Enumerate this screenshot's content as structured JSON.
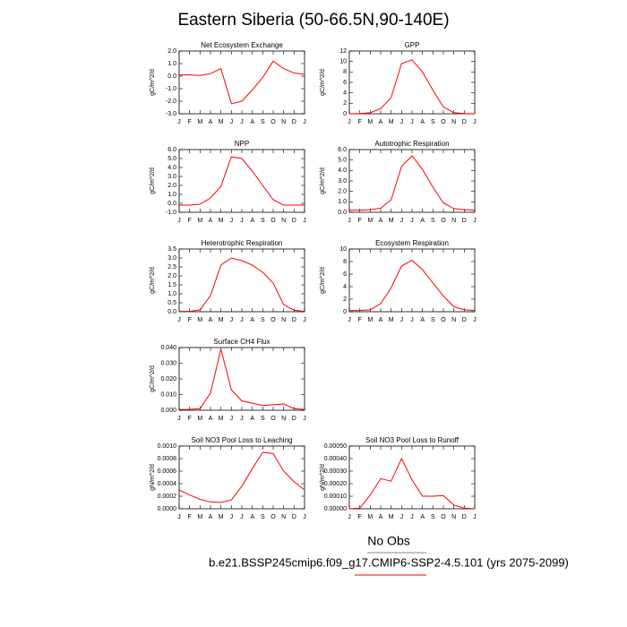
{
  "title": "Eastern Siberia (50-66.5N,90-140E)",
  "obs_label": "No Obs",
  "case_label": "b.e21.BSSP245cmip6.f09_g17.CMIP6-SSP2-4.5.101 (yrs 2075-2099)",
  "chart_data": [
    {
      "type": "line",
      "title": "Net Ecosystem Exchange",
      "ylabel": "gC/m^2/d",
      "color": "#ff0000",
      "categories": [
        "J",
        "F",
        "M",
        "A",
        "M",
        "J",
        "J",
        "A",
        "S",
        "O",
        "N",
        "D",
        "J"
      ],
      "values": [
        0.1,
        0.1,
        0.05,
        0.2,
        0.6,
        -2.2,
        -2.0,
        -1.1,
        -0.1,
        1.2,
        0.6,
        0.25,
        0.15
      ],
      "ylim": [
        -3,
        2
      ],
      "yticks": [
        {
          "value": -3,
          "label": "-3.0"
        },
        {
          "value": -2,
          "label": "-2.0"
        },
        {
          "value": -1,
          "label": "-1.0"
        },
        {
          "value": 0,
          "label": "0.0"
        },
        {
          "value": 1,
          "label": "1.0"
        },
        {
          "value": 2,
          "label": "2.0"
        }
      ]
    },
    {
      "type": "line",
      "title": "GPP",
      "ylabel": "gC/m^2/d",
      "color": "#ff0000",
      "categories": [
        "J",
        "F",
        "M",
        "A",
        "M",
        "J",
        "J",
        "A",
        "S",
        "O",
        "N",
        "D",
        "J"
      ],
      "values": [
        0,
        0.05,
        0.2,
        1.0,
        3.1,
        9.6,
        10.3,
        8.0,
        4.5,
        1.3,
        0.2,
        0.05,
        0
      ],
      "ylim": [
        0,
        12
      ],
      "yticks": [
        0,
        2,
        4,
        6,
        8,
        10,
        12
      ]
    },
    {
      "type": "line",
      "title": "NPP",
      "ylabel": "gC/m^2/d",
      "color": "#ff0000",
      "categories": [
        "J",
        "F",
        "M",
        "A",
        "M",
        "J",
        "J",
        "A",
        "S",
        "O",
        "N",
        "D",
        "J"
      ],
      "values": [
        -0.2,
        -0.2,
        -0.1,
        0.6,
        1.9,
        5.2,
        5.0,
        3.6,
        2.0,
        0.4,
        -0.2,
        -0.2,
        -0.2
      ],
      "ylim": [
        -1,
        6
      ],
      "yticks": [
        {
          "value": -1,
          "label": "-1.0"
        },
        {
          "value": 0,
          "label": "0.0"
        },
        {
          "value": 1,
          "label": "1.0"
        },
        {
          "value": 2,
          "label": "2.0"
        },
        {
          "value": 3,
          "label": "3.0"
        },
        {
          "value": 4,
          "label": "4.0"
        },
        {
          "value": 5,
          "label": "5.0"
        },
        {
          "value": 6,
          "label": "6.0"
        }
      ]
    },
    {
      "type": "line",
      "title": "Autotrophic Respiration",
      "ylabel": "gC/m^2/d",
      "color": "#ff0000",
      "categories": [
        "J",
        "F",
        "M",
        "A",
        "M",
        "J",
        "J",
        "A",
        "S",
        "O",
        "N",
        "D",
        "J"
      ],
      "values": [
        0.2,
        0.2,
        0.25,
        0.4,
        1.2,
        4.4,
        5.4,
        4.1,
        2.4,
        0.9,
        0.35,
        0.25,
        0.2
      ],
      "ylim": [
        0,
        6
      ],
      "yticks": [
        {
          "value": 0,
          "label": "0.0"
        },
        {
          "value": 1,
          "label": "1.0"
        },
        {
          "value": 2,
          "label": "2.0"
        },
        {
          "value": 3,
          "label": "3.0"
        },
        {
          "value": 4,
          "label": "4.0"
        },
        {
          "value": 5,
          "label": "5.0"
        },
        {
          "value": 6,
          "label": "6.0"
        }
      ]
    },
    {
      "type": "line",
      "title": "Heterotrophic Respiration",
      "ylabel": "gC/m^2/d",
      "color": "#ff0000",
      "categories": [
        "J",
        "F",
        "M",
        "A",
        "M",
        "J",
        "J",
        "A",
        "S",
        "O",
        "N",
        "D",
        "J"
      ],
      "values": [
        0.02,
        0.02,
        0.1,
        0.9,
        2.6,
        3.0,
        2.85,
        2.6,
        2.2,
        1.6,
        0.4,
        0.08,
        0.02
      ],
      "ylim": [
        0,
        3.5
      ],
      "yticks": [
        {
          "value": 0,
          "label": "0.0"
        },
        0.5,
        {
          "value": 1,
          "label": "1.0"
        },
        1.5,
        {
          "value": 2,
          "label": "2.0"
        },
        2.5,
        {
          "value": 3,
          "label": "3.0"
        },
        3.5
      ]
    },
    {
      "type": "line",
      "title": "Ecosystem Respiration",
      "ylabel": "gC/m^2/d",
      "color": "#ff0000",
      "categories": [
        "J",
        "F",
        "M",
        "A",
        "M",
        "J",
        "J",
        "A",
        "S",
        "O",
        "N",
        "D",
        "J"
      ],
      "values": [
        0.2,
        0.2,
        0.3,
        1.3,
        3.8,
        7.3,
        8.2,
        6.7,
        4.6,
        2.5,
        0.8,
        0.3,
        0.2
      ],
      "ylim": [
        0,
        10
      ],
      "yticks": [
        0,
        2,
        4,
        6,
        8,
        10
      ]
    },
    {
      "type": "line",
      "title": "Surface CH4 Flux",
      "ylabel": "gC/m^2/d",
      "color": "#ff0000",
      "categories": [
        "J",
        "F",
        "M",
        "A",
        "M",
        "J",
        "J",
        "A",
        "S",
        "O",
        "N",
        "D",
        "J"
      ],
      "values": [
        0.0005,
        0.0005,
        0.001,
        0.011,
        0.039,
        0.013,
        0.006,
        0.0045,
        0.003,
        0.0035,
        0.004,
        0.001,
        0.0005
      ],
      "ylim": [
        0,
        0.04
      ],
      "yticks": [
        {
          "value": 0,
          "label": "0.000"
        },
        {
          "value": 0.01,
          "label": "0.010"
        },
        {
          "value": 0.02,
          "label": "0.020"
        },
        {
          "value": 0.03,
          "label": "0.030"
        },
        {
          "value": 0.04,
          "label": "0.040"
        }
      ]
    },
    {
      "type": "line",
      "title": "Soil NO3 Pool Loss to Leaching",
      "ylabel": "gN/m^2/d",
      "color": "#ff0000",
      "categories": [
        "J",
        "F",
        "M",
        "A",
        "M",
        "J",
        "J",
        "A",
        "S",
        "O",
        "N",
        "D",
        "J"
      ],
      "values": [
        0.0003,
        0.00022,
        0.00015,
        0.00011,
        0.0001,
        0.00014,
        0.00036,
        0.00064,
        0.0009,
        0.00088,
        0.0006,
        0.00043,
        0.0003
      ],
      "ylim": [
        0,
        0.001
      ],
      "yticks": [
        {
          "value": 0,
          "label": "0.0000"
        },
        {
          "value": 0.0002,
          "label": "0.0002"
        },
        {
          "value": 0.0004,
          "label": "0.0004"
        },
        {
          "value": 0.0006,
          "label": "0.0006"
        },
        {
          "value": 0.0008,
          "label": "0.0008"
        },
        {
          "value": 0.001,
          "label": "0.0010"
        }
      ]
    },
    {
      "type": "line",
      "title": "Soil NO3 Pool Loss to Runoff",
      "ylabel": "gN/m^2/d",
      "color": "#ff0000",
      "categories": [
        "J",
        "F",
        "M",
        "A",
        "M",
        "J",
        "J",
        "A",
        "S",
        "O",
        "N",
        "D",
        "J"
      ],
      "values": [
        0,
        5e-06,
        0.00011,
        0.00024,
        0.00022,
        0.0004,
        0.00023,
        0.0001,
        0.0001,
        0.000105,
        3e-05,
        5e-06,
        0
      ],
      "ylim": [
        0,
        0.0005
      ],
      "yticks": [
        {
          "value": 0,
          "label": "0.00000"
        },
        {
          "value": 0.0001,
          "label": "0.00010"
        },
        {
          "value": 0.0002,
          "label": "0.00020"
        },
        {
          "value": 0.0003,
          "label": "0.00030"
        },
        {
          "value": 0.0004,
          "label": "0.00040"
        },
        {
          "value": 0.0005,
          "label": "0.00050"
        }
      ]
    }
  ]
}
